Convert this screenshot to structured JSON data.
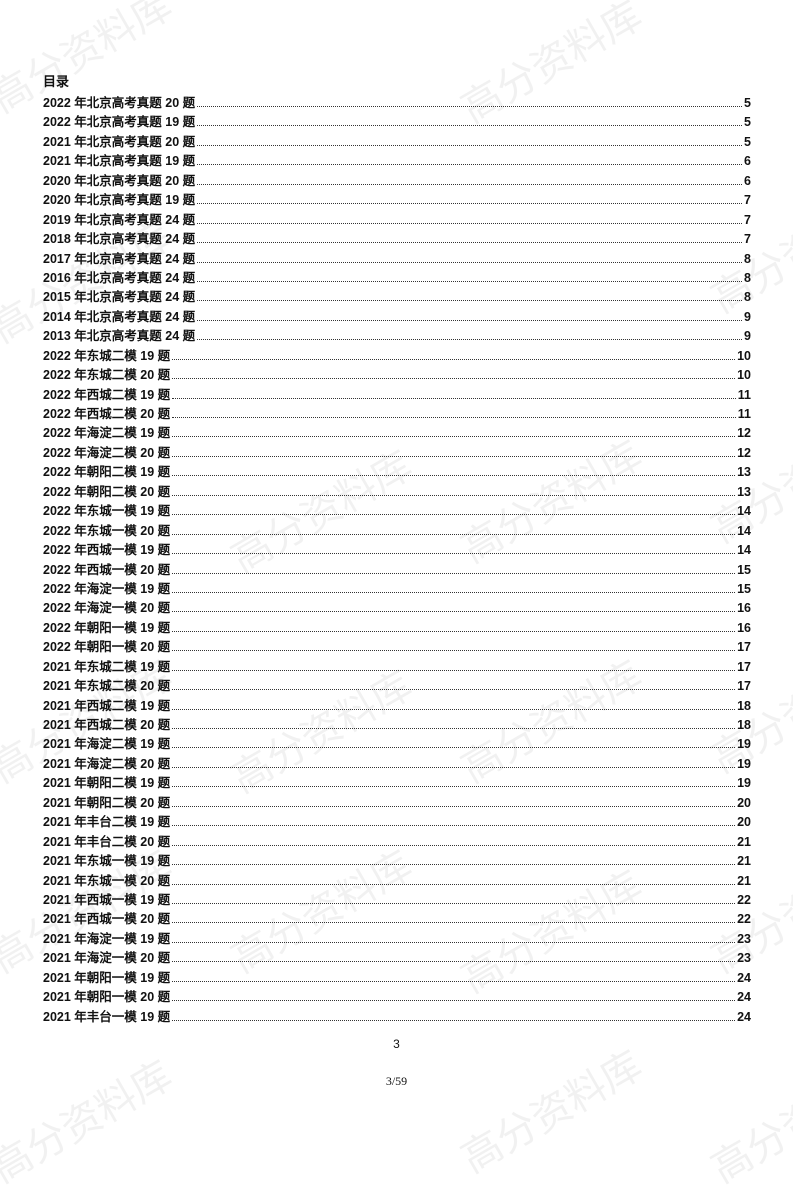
{
  "title": "目录",
  "watermark": "高分资料库",
  "entries": [
    {
      "label": "2022 年北京高考真题 20 题",
      "page": "5"
    },
    {
      "label": "2022 年北京高考真题 19 题",
      "page": "5"
    },
    {
      "label": "2021 年北京高考真题 20 题",
      "page": "5"
    },
    {
      "label": "2021 年北京高考真题 19 题",
      "page": "6"
    },
    {
      "label": "2020 年北京高考真题 20 题",
      "page": "6"
    },
    {
      "label": "2020 年北京高考真题 19 题",
      "page": "7"
    },
    {
      "label": "2019 年北京高考真题 24 题",
      "page": "7"
    },
    {
      "label": "2018 年北京高考真题 24 题",
      "page": "7"
    },
    {
      "label": "2017 年北京高考真题 24 题",
      "page": "8"
    },
    {
      "label": "2016 年北京高考真题 24 题",
      "page": "8"
    },
    {
      "label": "2015 年北京高考真题 24 题",
      "page": "8"
    },
    {
      "label": "2014 年北京高考真题 24 题",
      "page": "9"
    },
    {
      "label": "2013 年北京高考真题 24 题",
      "page": "9"
    },
    {
      "label": "2022 年东城二模 19 题",
      "page": "10"
    },
    {
      "label": "2022 年东城二模 20 题",
      "page": "10"
    },
    {
      "label": "2022 年西城二模 19 题",
      "page": "11"
    },
    {
      "label": "2022 年西城二模 20 题",
      "page": "11"
    },
    {
      "label": "2022 年海淀二模 19 题",
      "page": "12"
    },
    {
      "label": "2022 年海淀二模 20 题",
      "page": "12"
    },
    {
      "label": "2022 年朝阳二模 19 题",
      "page": "13"
    },
    {
      "label": "2022 年朝阳二模 20 题",
      "page": "13"
    },
    {
      "label": "2022 年东城一模 19 题",
      "page": "14"
    },
    {
      "label": "2022 年东城一模 20 题",
      "page": "14"
    },
    {
      "label": "2022 年西城一模 19 题",
      "page": "14"
    },
    {
      "label": "2022 年西城一模 20 题",
      "page": "15"
    },
    {
      "label": "2022 年海淀一模 19 题",
      "page": "15"
    },
    {
      "label": "2022 年海淀一模 20 题",
      "page": "16"
    },
    {
      "label": "2022 年朝阳一模 19 题",
      "page": "16"
    },
    {
      "label": "2022 年朝阳一模 20 题",
      "page": "17"
    },
    {
      "label": "2021 年东城二模 19 题",
      "page": "17"
    },
    {
      "label": "2021 年东城二模 20 题",
      "page": "17"
    },
    {
      "label": "2021 年西城二模 19 题",
      "page": "18"
    },
    {
      "label": "2021 年西城二模 20 题",
      "page": "18"
    },
    {
      "label": "2021 年海淀二模 19 题",
      "page": "19"
    },
    {
      "label": "2021 年海淀二模 20 题",
      "page": "19"
    },
    {
      "label": "2021 年朝阳二模 19 题",
      "page": "19"
    },
    {
      "label": "2021 年朝阳二模 20 题",
      "page": "20"
    },
    {
      "label": "2021 年丰台二模 19 题",
      "page": "20"
    },
    {
      "label": "2021 年丰台二模 20 题",
      "page": "21"
    },
    {
      "label": "2021 年东城一模 19 题",
      "page": "21"
    },
    {
      "label": "2021 年东城一模 20 题",
      "page": "21"
    },
    {
      "label": "2021 年西城一模 19 题",
      "page": "22"
    },
    {
      "label": "2021 年西城一模 20 题",
      "page": "22"
    },
    {
      "label": "2021 年海淀一模 19 题",
      "page": "23"
    },
    {
      "label": "2021 年海淀一模 20 题",
      "page": "23"
    },
    {
      "label": "2021 年朝阳一模 19 题",
      "page": "24"
    },
    {
      "label": "2021 年朝阳一模 20 题",
      "page": "24"
    },
    {
      "label": "2021 年丰台一模 19 题",
      "page": "24"
    }
  ],
  "footer": {
    "page_number": "3",
    "page_count": "3/59"
  }
}
